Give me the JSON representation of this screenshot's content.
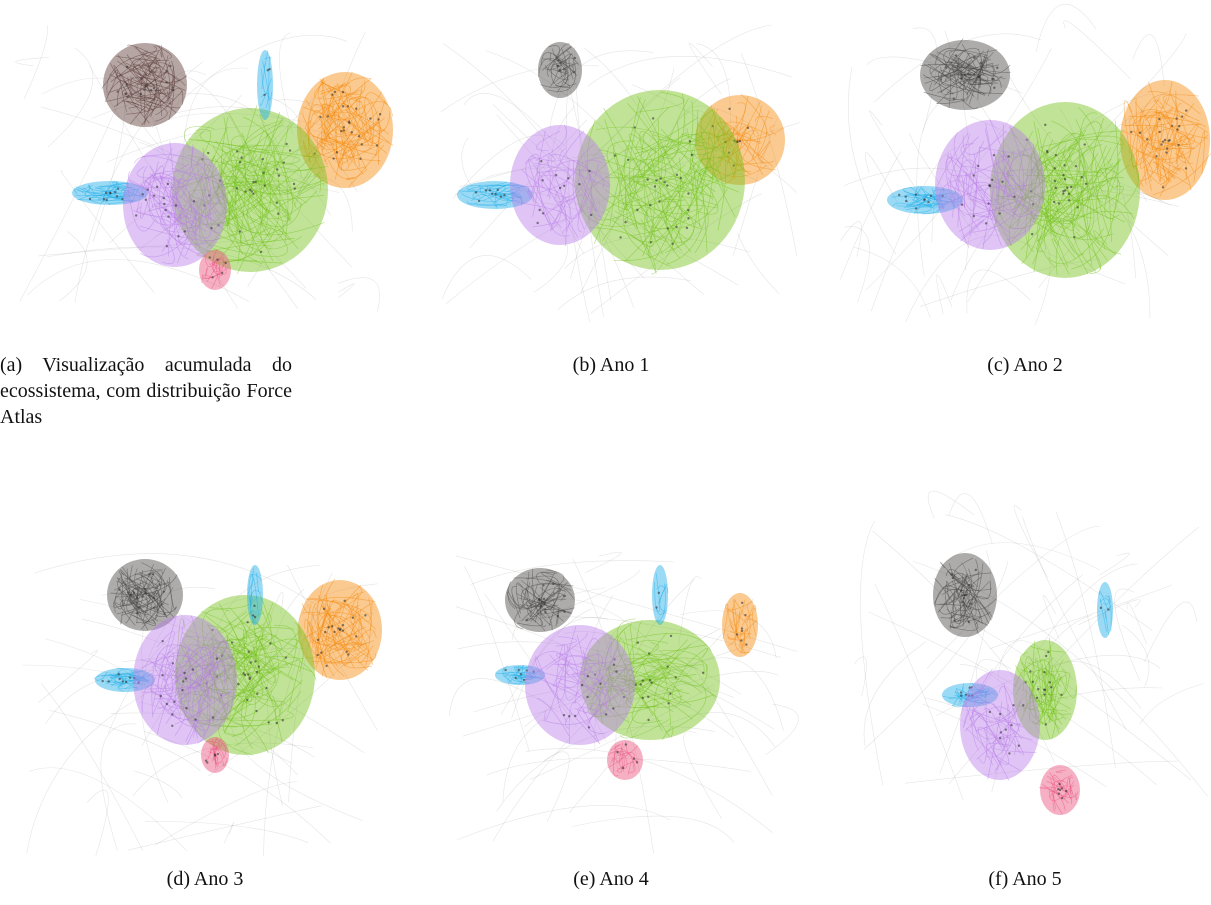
{
  "panels": [
    {
      "label": "(a)",
      "caption": "Visualização acumulada do ecossistema, com distribuição Force Atlas"
    },
    {
      "label": "(b)",
      "caption": "Ano 1"
    },
    {
      "label": "(c)",
      "caption": "Ano 2"
    },
    {
      "label": "(d)",
      "caption": "Ano 3"
    },
    {
      "label": "(e)",
      "caption": "Ano 4"
    },
    {
      "label": "(f)",
      "caption": "Ano 5"
    }
  ]
}
